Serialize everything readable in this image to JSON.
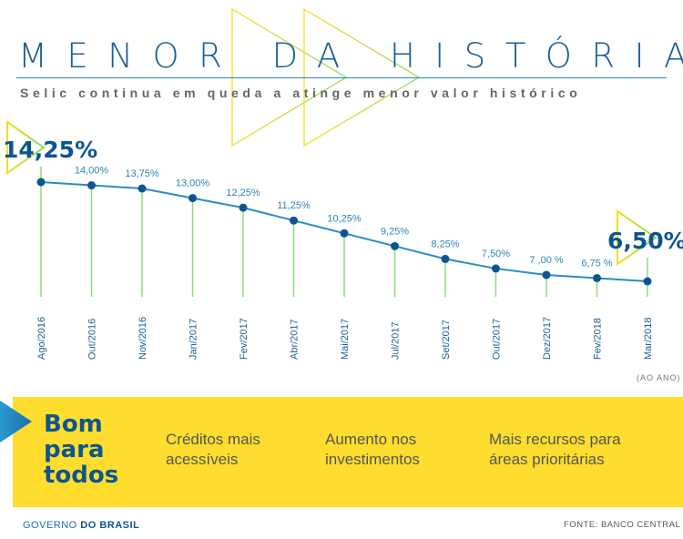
{
  "header": {
    "title": "MENOR DA HISTÓRIA",
    "subtitle": "Selic continua em queda a atinge menor valor histórico"
  },
  "chart_data": {
    "type": "line",
    "title": "MENOR DA HISTÓRIA",
    "categories": [
      "Ago/2016",
      "Out/2016",
      "Nov/2016",
      "Jan/2017",
      "Fev/2017",
      "Abr/2017",
      "Mai/2017",
      "Jul/2017",
      "Set/2017",
      "Out/2017",
      "Dez/2017",
      "Fev/2018",
      "Mar/2018"
    ],
    "values": [
      14.25,
      14.0,
      13.75,
      13.0,
      12.25,
      11.25,
      10.25,
      9.25,
      8.25,
      7.5,
      7.0,
      6.75,
      6.5
    ],
    "data_labels": [
      "14,25%",
      "14,00%",
      "13,75%",
      "13,00%",
      "12,25%",
      "11,25%",
      "10,25%",
      "9,25%",
      "8,25%",
      "7,50%",
      "7 ,00 %",
      "6,75 %",
      "6,50%"
    ],
    "unit_note": "(AO ANO)",
    "ylim": [
      6.5,
      14.25
    ],
    "grid": false,
    "colors": {
      "line": "#2b8cc4",
      "point": "#0d5590",
      "stem": "#8fdc7a",
      "label": "#2b84b8"
    }
  },
  "banner": {
    "headline": [
      "Bom",
      "para",
      "todos"
    ],
    "benefits": [
      [
        "Créditos mais",
        "acessíveis"
      ],
      [
        "Aumento nos",
        "investimentos"
      ],
      [
        "Mais recursos para",
        "áreas prioritárias"
      ]
    ],
    "color": "#fedd2e"
  },
  "footer": {
    "brand_light": "GOVERNO",
    "brand_bold": "DO BRASIL",
    "source": "FONTE: BANCO CENTRAL"
  }
}
